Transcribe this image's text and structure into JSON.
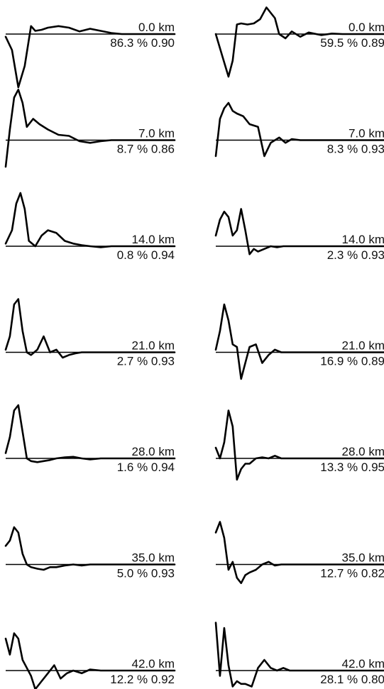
{
  "chart_data": [
    {
      "type": "line",
      "column": "left",
      "depth": "0.0 km",
      "stats": "86.3 % 0.90",
      "x": [
        0,
        0.03,
        0.06,
        0.09,
        0.12,
        0.14,
        0.17,
        0.2,
        0.25,
        0.3,
        0.35,
        0.4,
        0.45,
        0.5,
        0.55,
        0.6,
        0.65,
        0.7,
        0.75,
        0.8
      ],
      "y": [
        -0.05,
        -0.3,
        -1.0,
        -0.6,
        0.15,
        0.06,
        0.08,
        0.12,
        0.15,
        0.12,
        0.05,
        0.1,
        0.06,
        0.02,
        0,
        0,
        0,
        0,
        0,
        0
      ]
    },
    {
      "type": "line",
      "column": "right",
      "depth": "0.0 km",
      "stats": "59.5 % 0.89",
      "x": [
        0,
        0.03,
        0.06,
        0.08,
        0.1,
        0.12,
        0.15,
        0.18,
        0.21,
        0.24,
        0.28,
        0.3,
        0.33,
        0.36,
        0.4,
        0.44,
        0.5,
        0.55,
        0.6,
        0.7,
        0.8
      ],
      "y": [
        0,
        -0.4,
        -0.8,
        -0.5,
        0.18,
        0.2,
        0.18,
        0.2,
        0.28,
        0.5,
        0.3,
        0.0,
        -0.08,
        0.05,
        -0.05,
        0.03,
        -0.02,
        0.01,
        0,
        0,
        0
      ]
    },
    {
      "type": "line",
      "column": "left",
      "depth": "7.0 km",
      "stats": "8.7 % 0.86",
      "x": [
        0,
        0.02,
        0.04,
        0.06,
        0.08,
        0.1,
        0.13,
        0.16,
        0.2,
        0.25,
        0.3,
        0.35,
        0.4,
        0.45,
        0.5,
        0.55,
        0.6,
        0.65,
        0.7,
        0.8
      ],
      "y": [
        -0.5,
        0.2,
        0.8,
        0.95,
        0.7,
        0.25,
        0.4,
        0.3,
        0.2,
        0.1,
        0.08,
        -0.02,
        -0.05,
        -0.02,
        0,
        0,
        0,
        0,
        0,
        0
      ]
    },
    {
      "type": "line",
      "column": "right",
      "depth": "7.0 km",
      "stats": "8.3 % 0.93",
      "x": [
        0,
        0.02,
        0.04,
        0.06,
        0.08,
        0.1,
        0.13,
        0.16,
        0.2,
        0.23,
        0.26,
        0.3,
        0.33,
        0.36,
        0.4,
        0.45,
        0.5,
        0.6,
        0.7,
        0.8
      ],
      "y": [
        -0.3,
        0.4,
        0.6,
        0.7,
        0.55,
        0.5,
        0.45,
        0.3,
        0.25,
        -0.3,
        -0.05,
        0.05,
        -0.05,
        0.02,
        0,
        0,
        0,
        0,
        0,
        0
      ]
    },
    {
      "type": "line",
      "column": "left",
      "depth": "14.0 km",
      "stats": "0.8 % 0.94",
      "x": [
        0,
        0.03,
        0.05,
        0.07,
        0.09,
        0.11,
        0.14,
        0.17,
        0.2,
        0.24,
        0.28,
        0.32,
        0.36,
        0.4,
        0.45,
        0.5,
        0.55,
        0.6,
        0.7,
        0.8
      ],
      "y": [
        0.05,
        0.3,
        0.8,
        1.0,
        0.7,
        0.1,
        0.0,
        0.2,
        0.3,
        0.25,
        0.1,
        0.05,
        0.02,
        0.0,
        -0.02,
        0,
        0,
        0,
        0,
        0
      ]
    },
    {
      "type": "line",
      "column": "right",
      "depth": "14.0 km",
      "stats": "2.3 % 0.93",
      "x": [
        0,
        0.02,
        0.04,
        0.06,
        0.08,
        0.1,
        0.12,
        0.14,
        0.16,
        0.18,
        0.2,
        0.23,
        0.26,
        0.29,
        0.32,
        0.36,
        0.4,
        0.5,
        0.6,
        0.8
      ],
      "y": [
        0.2,
        0.5,
        0.65,
        0.55,
        0.2,
        0.3,
        0.7,
        0.3,
        -0.15,
        -0.05,
        -0.1,
        -0.05,
        0.0,
        -0.02,
        0,
        0,
        0,
        0,
        0,
        0
      ]
    },
    {
      "type": "line",
      "column": "left",
      "depth": "21.0 km",
      "stats": "2.7 % 0.93",
      "x": [
        0,
        0.02,
        0.04,
        0.06,
        0.08,
        0.1,
        0.12,
        0.15,
        0.18,
        0.21,
        0.24,
        0.27,
        0.3,
        0.33,
        0.36,
        0.4,
        0.45,
        0.5,
        0.6,
        0.8
      ],
      "y": [
        0.05,
        0.3,
        0.9,
        1.0,
        0.4,
        0.0,
        -0.05,
        0.05,
        0.3,
        0.0,
        0.05,
        -0.1,
        -0.05,
        -0.02,
        0,
        0,
        0,
        0,
        0,
        0
      ]
    },
    {
      "type": "line",
      "column": "right",
      "depth": "21.0 km",
      "stats": "16.9 % 0.89",
      "x": [
        0,
        0.02,
        0.04,
        0.06,
        0.08,
        0.1,
        0.12,
        0.14,
        0.16,
        0.19,
        0.22,
        0.25,
        0.28,
        0.31,
        0.34,
        0.38,
        0.42,
        0.5,
        0.6,
        0.8
      ],
      "y": [
        0.05,
        0.4,
        0.9,
        0.6,
        0.15,
        0.1,
        -0.5,
        -0.2,
        0.1,
        0.15,
        -0.2,
        -0.05,
        0.05,
        0.0,
        0.0,
        0,
        0,
        0,
        0,
        0
      ]
    },
    {
      "type": "line",
      "column": "left",
      "depth": "28.0 km",
      "stats": "1.6 % 0.94",
      "x": [
        0,
        0.02,
        0.04,
        0.06,
        0.08,
        0.1,
        0.12,
        0.15,
        0.18,
        0.21,
        0.24,
        0.28,
        0.32,
        0.36,
        0.4,
        0.45,
        0.5,
        0.55,
        0.6,
        0.8
      ],
      "y": [
        0.1,
        0.4,
        0.9,
        1.0,
        0.5,
        0.0,
        -0.05,
        -0.07,
        -0.05,
        -0.03,
        0.0,
        0.02,
        0.03,
        0.0,
        -0.02,
        0,
        0,
        0,
        0,
        0
      ]
    },
    {
      "type": "line",
      "column": "right",
      "depth": "28.0 km",
      "stats": "13.3 % 0.95",
      "x": [
        0,
        0.02,
        0.04,
        0.06,
        0.08,
        0.1,
        0.12,
        0.14,
        0.16,
        0.19,
        0.22,
        0.25,
        0.28,
        0.31,
        0.34,
        0.38,
        0.42,
        0.5,
        0.6,
        0.8
      ],
      "y": [
        0.2,
        0.0,
        0.3,
        0.9,
        0.6,
        -0.4,
        -0.2,
        -0.1,
        -0.1,
        0.0,
        0.02,
        0.0,
        0.05,
        0.0,
        0,
        0,
        0,
        0,
        0,
        0
      ]
    },
    {
      "type": "line",
      "column": "left",
      "depth": "35.0 km",
      "stats": "5.0 % 0.93",
      "x": [
        0,
        0.02,
        0.04,
        0.06,
        0.08,
        0.1,
        0.12,
        0.15,
        0.18,
        0.21,
        0.24,
        0.28,
        0.32,
        0.36,
        0.4,
        0.45,
        0.5,
        0.55,
        0.6,
        0.8
      ],
      "y": [
        0.35,
        0.45,
        0.7,
        0.6,
        0.2,
        0.0,
        -0.05,
        -0.08,
        -0.1,
        -0.05,
        -0.05,
        -0.02,
        0.0,
        -0.02,
        0,
        0,
        0,
        0,
        0,
        0
      ]
    },
    {
      "type": "line",
      "column": "right",
      "depth": "35.0 km",
      "stats": "12.7 % 0.82",
      "x": [
        0,
        0.02,
        0.04,
        0.06,
        0.08,
        0.1,
        0.12,
        0.14,
        0.16,
        0.19,
        0.22,
        0.25,
        0.28,
        0.31,
        0.34,
        0.38,
        0.42,
        0.5,
        0.6,
        0.8
      ],
      "y": [
        0.6,
        0.8,
        0.5,
        -0.1,
        0.05,
        -0.25,
        -0.35,
        -0.2,
        -0.15,
        -0.1,
        0.0,
        0.05,
        -0.02,
        0.0,
        0,
        0,
        0,
        0,
        0,
        0
      ]
    },
    {
      "type": "line",
      "column": "left",
      "depth": "42.0 km",
      "stats": "12.2 % 0.92",
      "x": [
        0,
        0.02,
        0.04,
        0.06,
        0.08,
        0.1,
        0.12,
        0.14,
        0.17,
        0.2,
        0.23,
        0.26,
        0.29,
        0.32,
        0.36,
        0.4,
        0.45,
        0.5,
        0.6,
        0.8
      ],
      "y": [
        0.6,
        0.3,
        0.7,
        0.6,
        0.2,
        0.05,
        -0.1,
        -0.35,
        -0.2,
        -0.05,
        0.1,
        -0.15,
        -0.05,
        0.0,
        -0.05,
        0.02,
        0,
        0,
        0,
        0
      ]
    },
    {
      "type": "line",
      "column": "right",
      "depth": "42.0 km",
      "stats": "28.1 % 0.80",
      "x": [
        0,
        0.02,
        0.04,
        0.06,
        0.08,
        0.1,
        0.12,
        0.14,
        0.17,
        0.2,
        0.23,
        0.26,
        0.29,
        0.32,
        0.35,
        0.38,
        0.42,
        0.5,
        0.6,
        0.8
      ],
      "y": [
        0.9,
        -0.1,
        0.8,
        0.1,
        -0.3,
        -0.2,
        -0.25,
        -0.25,
        -0.3,
        0.05,
        0.2,
        0.05,
        0.0,
        0.05,
        0.0,
        0,
        0,
        0,
        0,
        0
      ]
    }
  ]
}
